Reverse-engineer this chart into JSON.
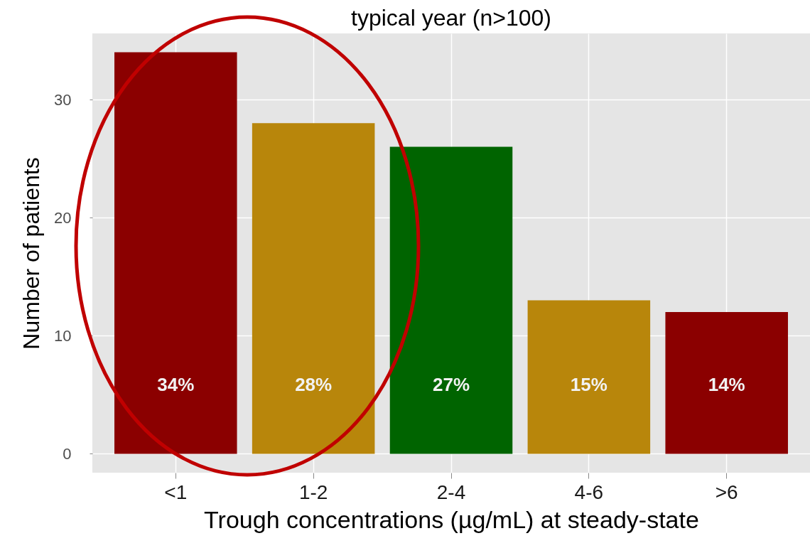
{
  "chart_data": {
    "type": "bar",
    "title": "typical year (n>100)",
    "xlabel": "Trough concentrations (µg/mL) at steady-state",
    "ylabel": "Number of patients",
    "categories": [
      "<1",
      "1-2",
      "2-4",
      "4-6",
      ">6"
    ],
    "values": [
      34,
      28,
      26,
      13,
      12
    ],
    "colors": [
      "#8b0000",
      "#b8860b",
      "#006400",
      "#b8860b",
      "#8b0000"
    ],
    "annotations": [
      "34%",
      "28%",
      "27%",
      "15%",
      "14%"
    ],
    "ylim": [
      -1.6,
      35.6
    ],
    "yticks": [
      0,
      10,
      20,
      30
    ],
    "grid": true
  }
}
